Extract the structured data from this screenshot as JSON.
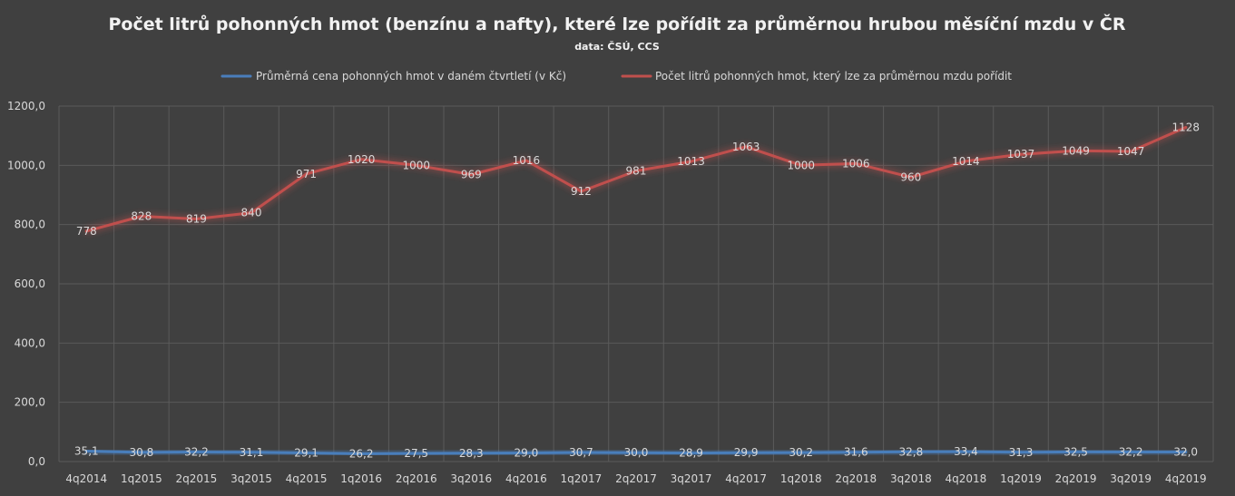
{
  "colors": {
    "background": "#404040",
    "price_series": "#4a7ebb",
    "liters_series": "#c0504d",
    "grid": "#5a5a5a",
    "text": "#d9d9d9"
  },
  "chart_data": {
    "type": "line",
    "title": "Počet litrů pohonných hmot (benzínu a nafty), které lze pořídit za průměrnou hrubou měsíční mzdu v ČR",
    "subtitle": "data: ČSÚ, CCS",
    "xlabel": "",
    "ylabel": "",
    "ylim": [
      0,
      1200
    ],
    "yticks": [
      "0,0",
      "200,0",
      "400,0",
      "600,0",
      "800,0",
      "1000,0",
      "1200,0"
    ],
    "grid": true,
    "legend_position": "top",
    "categories": [
      "4q2014",
      "1q2015",
      "2q2015",
      "3q2015",
      "4q2015",
      "1q2016",
      "2q2016",
      "3q2016",
      "4q2016",
      "1q2017",
      "2q2017",
      "3q2017",
      "4q2017",
      "1q2018",
      "2q2018",
      "3q2018",
      "4q2018",
      "1q2019",
      "2q2019",
      "3q2019",
      "4q2019"
    ],
    "series": [
      {
        "name": "Průměrná cena pohonných hmot v daném čtvrtletí (v Kč)",
        "color": "#4a7ebb",
        "values": [
          35.1,
          30.8,
          32.2,
          31.1,
          29.1,
          26.2,
          27.5,
          28.3,
          29.0,
          30.7,
          30.0,
          28.9,
          29.9,
          30.2,
          31.6,
          32.8,
          33.4,
          31.3,
          32.5,
          32.2,
          32.0
        ],
        "labels": [
          "35,1",
          "30,8",
          "32,2",
          "31,1",
          "29,1",
          "26,2",
          "27,5",
          "28,3",
          "29,0",
          "30,7",
          "30,0",
          "28,9",
          "29,9",
          "30,2",
          "31,6",
          "32,8",
          "33,4",
          "31,3",
          "32,5",
          "32,2",
          "32,0"
        ]
      },
      {
        "name": "Počet litrů pohonných hmot, který lze za průměrnou mzdu pořídit",
        "color": "#c0504d",
        "values": [
          778,
          828,
          819,
          840,
          971,
          1020,
          1000,
          969,
          1016,
          912,
          981,
          1013,
          1063,
          1000,
          1006,
          960,
          1014,
          1037,
          1049,
          1047,
          1128
        ],
        "labels": [
          "778",
          "828",
          "819",
          "840",
          "971",
          "1020",
          "1000",
          "969",
          "1016",
          "912",
          "981",
          "1013",
          "1063",
          "1000",
          "1006",
          "960",
          "1014",
          "1037",
          "1049",
          "1047",
          "1128"
        ]
      }
    ]
  }
}
